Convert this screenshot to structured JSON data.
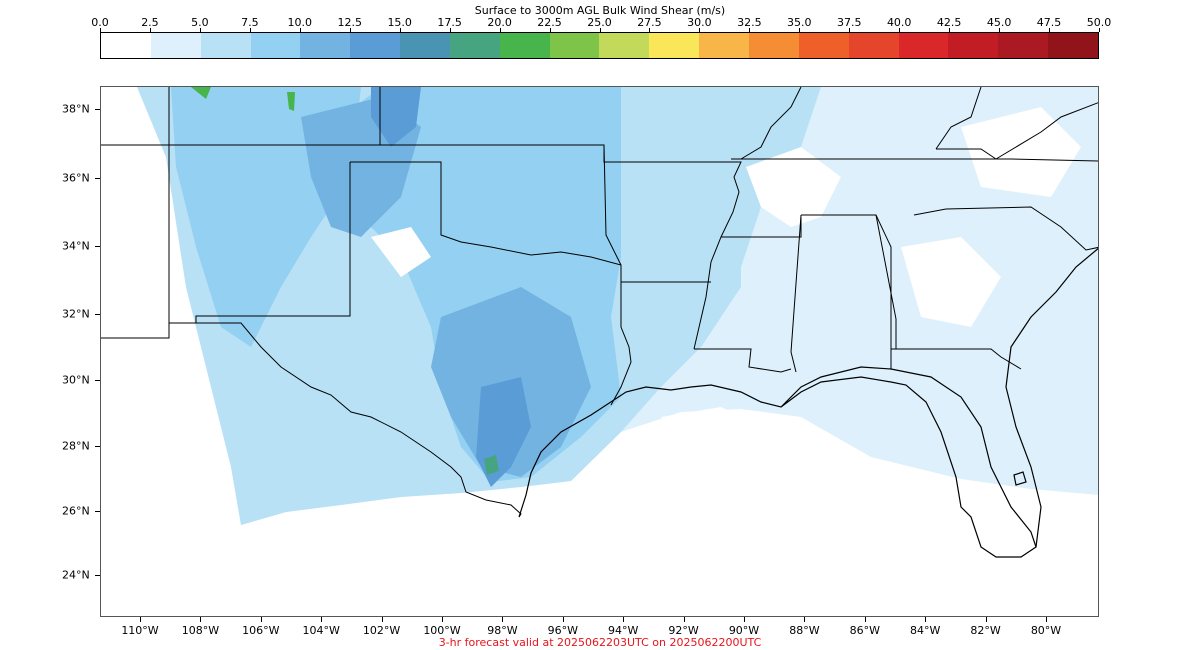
{
  "title": "Surface to 3000m AGL Bulk Wind Shear (m/s)",
  "footer": "3-hr forecast valid at 2025062203UTC on 2025062200UTC",
  "colorbar": {
    "ticks": [
      "0.0",
      "2.5",
      "5.0",
      "7.5",
      "10.0",
      "12.5",
      "15.0",
      "17.5",
      "20.0",
      "22.5",
      "25.0",
      "27.5",
      "30.0",
      "32.5",
      "35.0",
      "37.5",
      "40.0",
      "42.5",
      "45.0",
      "47.5",
      "50.0"
    ],
    "colors": [
      "#ffffff",
      "#ddf0fb",
      "#b8e1f6",
      "#94d0f1",
      "#73b3e2",
      "#5a9dd6",
      "#4a93b3",
      "#47a480",
      "#48b44c",
      "#7dc449",
      "#c2d95a",
      "#f9e759",
      "#f8b648",
      "#f48d34",
      "#ef5f2a",
      "#e5452a",
      "#d9272a",
      "#c21d25",
      "#ab1a22",
      "#91141a"
    ]
  },
  "axes": {
    "lat_labels": [
      "38°N",
      "36°N",
      "34°N",
      "32°N",
      "30°N",
      "28°N",
      "26°N",
      "24°N"
    ],
    "lon_labels": [
      "110°W",
      "108°W",
      "106°W",
      "104°W",
      "102°W",
      "100°W",
      "98°W",
      "96°W",
      "94°W",
      "92°W",
      "90°W",
      "88°W",
      "86°W",
      "84°W",
      "82°W",
      "80°W"
    ]
  },
  "map": {
    "fill_colors": {
      "light": "#ddf0fb",
      "mid": "#b8e1f6",
      "mid2": "#94d0f1",
      "strong": "#73b3e2",
      "stronger": "#5a9dd6",
      "teal": "#47a480",
      "green": "#48b44c",
      "boundary": "#000000"
    }
  }
}
